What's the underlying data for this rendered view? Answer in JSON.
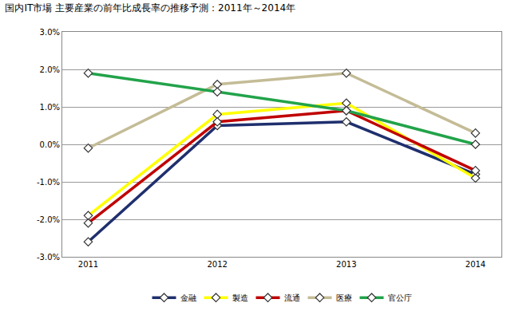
{
  "chart_data": {
    "type": "line",
    "title": "国内IT市場 主要産業の前年比成長率の推移予測：2011年～2014年",
    "categories": [
      "2011",
      "2012",
      "2013",
      "2014"
    ],
    "series": [
      {
        "name": "金融",
        "color": "#1f2f6e",
        "values": [
          -2.6,
          0.5,
          0.6,
          -0.8
        ]
      },
      {
        "name": "製造",
        "color": "#ffff00",
        "values": [
          -1.9,
          0.8,
          1.1,
          -0.9
        ]
      },
      {
        "name": "流通",
        "color": "#c00000",
        "values": [
          -2.1,
          0.6,
          0.9,
          -0.7
        ]
      },
      {
        "name": "医療",
        "color": "#c4bc96",
        "values": [
          -0.1,
          1.6,
          1.9,
          0.3
        ]
      },
      {
        "name": "官公庁",
        "color": "#22a34a",
        "values": [
          1.9,
          1.4,
          0.9,
          0.0
        ]
      }
    ],
    "ylim": [
      -3,
      3
    ],
    "yticks": [
      {
        "value": -3,
        "label": "-3.0%"
      },
      {
        "value": -2,
        "label": "-2.0%"
      },
      {
        "value": -1,
        "label": "-1.0%"
      },
      {
        "value": 0,
        "label": "0.0%"
      },
      {
        "value": 1,
        "label": "1.0%"
      },
      {
        "value": 2,
        "label": "2.0%"
      },
      {
        "value": 3,
        "label": "3.0%"
      }
    ],
    "grid": true,
    "legend": "bottom",
    "marker": "diamond"
  }
}
